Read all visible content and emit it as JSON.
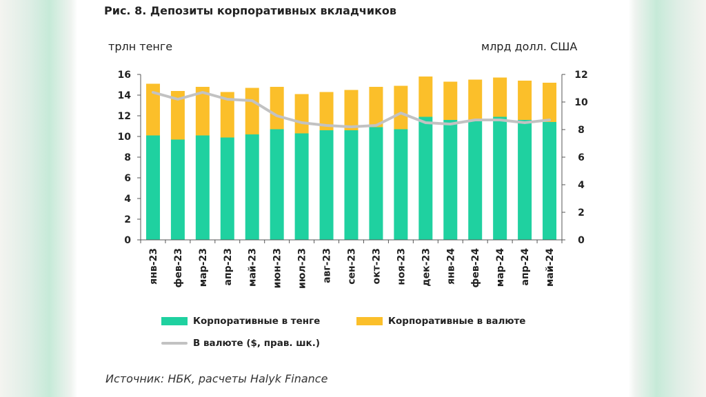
{
  "title": "Рис. 8. Депозиты корпоративных вкладчиков",
  "left_unit": "трлн тенге",
  "right_unit": "млрд долл. США",
  "source": "Источник: НБК, расчеты Halyk Finance",
  "chart_data": {
    "type": "bar",
    "stacked": true,
    "categories": [
      "янв-23",
      "фев-23",
      "мар-23",
      "апр-23",
      "май-23",
      "июн-23",
      "июл-23",
      "авг-23",
      "сен-23",
      "окт-23",
      "ноя-23",
      "дек-23",
      "янв-24",
      "фев-24",
      "мар-24",
      "апр-24",
      "май-24"
    ],
    "series": [
      {
        "name": "Корпоративные в тенге",
        "axis": "left",
        "color": "#1fd1a0",
        "values": [
          10.1,
          9.7,
          10.1,
          9.9,
          10.2,
          10.7,
          10.3,
          10.6,
          10.6,
          10.9,
          10.7,
          11.9,
          11.6,
          11.5,
          11.9,
          11.6,
          11.4
        ]
      },
      {
        "name": "Корпоративные в валюте",
        "axis": "left",
        "color": "#fbbf2a",
        "values": [
          5.0,
          4.7,
          4.7,
          4.4,
          4.5,
          4.1,
          3.8,
          3.7,
          3.9,
          3.9,
          4.2,
          3.9,
          3.7,
          4.0,
          3.8,
          3.8,
          3.8
        ]
      },
      {
        "name": "В валюте ($, прав. шк.)",
        "type": "line",
        "axis": "right",
        "color": "#c2c2c2",
        "values": [
          10.7,
          10.2,
          10.7,
          10.2,
          10.1,
          9.0,
          8.5,
          8.3,
          8.2,
          8.3,
          9.2,
          8.5,
          8.4,
          8.7,
          8.7,
          8.5,
          8.7
        ]
      }
    ],
    "y_left": {
      "min": 0,
      "max": 16,
      "ticks": [
        0,
        2,
        4,
        6,
        8,
        10,
        12,
        14,
        16
      ]
    },
    "y_right": {
      "min": 0,
      "max": 12,
      "ticks": [
        0,
        2,
        4,
        6,
        8,
        10,
        12
      ]
    },
    "grid": false,
    "legend": "bottom"
  }
}
